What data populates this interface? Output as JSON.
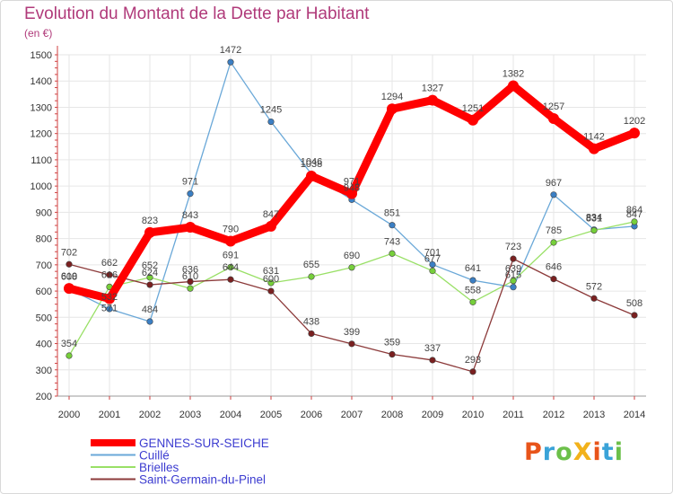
{
  "title": "Evolution du Montant de la Dette par Habitant",
  "subtitle": "(en €)",
  "logo": {
    "text": "ProXiti",
    "colors": [
      "#e8541a",
      "#3aa3d8",
      "#6cc04a",
      "#f2b21b",
      "#e8541a",
      "#3aa3d8",
      "#6cc04a"
    ]
  },
  "chart_data": {
    "type": "line",
    "title": "Evolution du Montant de la Dette par Habitant",
    "subtitle": "(en €)",
    "x": [
      "2000",
      "2001",
      "2002",
      "2003",
      "2004",
      "2005",
      "2006",
      "2007",
      "2008",
      "2009",
      "2010",
      "2011",
      "2012",
      "2013",
      "2014"
    ],
    "yticks": [
      200,
      300,
      400,
      500,
      600,
      700,
      800,
      900,
      1000,
      1100,
      1200,
      1300,
      1400,
      1500
    ],
    "ylim": [
      200,
      1500
    ],
    "grid": true,
    "legend_position": "bottom-left",
    "series": [
      {
        "name": "GENNES-SUR-SEICHE",
        "color": "#ff0000",
        "marker": "#ff0000",
        "values": [
          610,
          571,
          823,
          843,
          790,
          847,
          1038,
          971,
          1294,
          1327,
          1251,
          1382,
          1257,
          1142,
          1202
        ],
        "labels": [
          "610",
          "571",
          "823",
          "843",
          "790",
          "847",
          "1038",
          "971",
          "1294",
          "1327",
          "1251",
          "1382",
          "1257",
          "1142",
          "1202"
        ],
        "label_dy": [
          -10,
          14,
          -10,
          -10,
          -10,
          -10,
          -10,
          -10,
          -10,
          -10,
          -10,
          -10,
          -10,
          -10,
          -10
        ]
      },
      {
        "name": "Cuillé",
        "color": "#6aa8d8",
        "marker": "#3b7fc4",
        "values": [
          608,
          532,
          484,
          971,
          1472,
          1245,
          1046,
          948,
          851,
          701,
          641,
          615,
          967,
          834,
          847
        ],
        "labels": [
          "608",
          "532",
          "484",
          "971",
          "1472",
          "1245",
          "1046",
          "948",
          "851",
          "701",
          "641",
          "615",
          "967",
          "834",
          "847"
        ],
        "label_dy": [
          -10,
          -10,
          -10,
          -10,
          -10,
          -10,
          -10,
          -10,
          -10,
          -10,
          -10,
          -10,
          -10,
          -10,
          -10
        ]
      },
      {
        "name": "Brielles",
        "color": "#99e066",
        "marker": "#76cf3a",
        "values": [
          354,
          616,
          652,
          610,
          691,
          631,
          655,
          690,
          743,
          677,
          558,
          639,
          785,
          831,
          864
        ],
        "labels": [
          "354",
          "616",
          "652",
          "610",
          "691",
          "631",
          "655",
          "690",
          "743",
          "677",
          "558",
          "639",
          "785",
          "831",
          "864"
        ],
        "label_dy": [
          -10,
          -10,
          -10,
          -10,
          -10,
          -10,
          -10,
          -10,
          -10,
          -10,
          -10,
          -10,
          -10,
          -10,
          -10
        ]
      },
      {
        "name": "Saint-Germain-du-Pinel",
        "color": "#8c3a3a",
        "marker": "#7a2020",
        "values": [
          702,
          662,
          624,
          636,
          644,
          600,
          438,
          399,
          359,
          337,
          293,
          723,
          646,
          572,
          508
        ],
        "labels": [
          "702",
          "662",
          "624",
          "636",
          "644",
          "600",
          "438",
          "399",
          "359",
          "337",
          "293",
          "723",
          "646",
          "572",
          "508"
        ],
        "label_dy": [
          -10,
          -10,
          -10,
          -10,
          -10,
          -10,
          -10,
          -10,
          -10,
          -10,
          -10,
          -10,
          -10,
          -10,
          -10
        ]
      }
    ]
  }
}
